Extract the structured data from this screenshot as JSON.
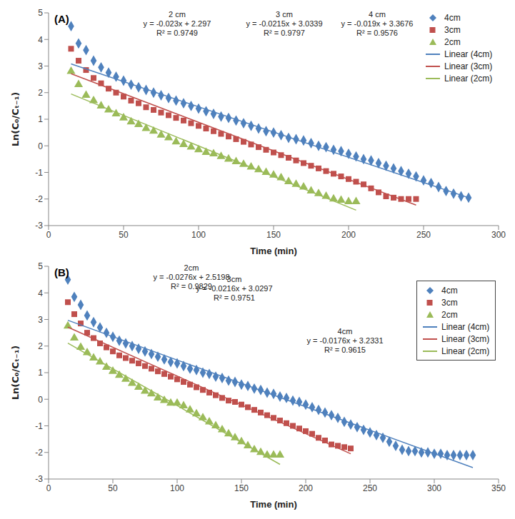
{
  "chart_data": [
    {
      "type": "scatter",
      "title": "(A)",
      "x_label": "Time (min)",
      "y_label": "Ln(C₀/Cₜ₋₁)",
      "xlim": [
        0,
        300
      ],
      "xticks": [
        0,
        50,
        100,
        150,
        200,
        250,
        300
      ],
      "ylim": [
        -3,
        5
      ],
      "yticks": [
        -3,
        -2,
        -1,
        0,
        1,
        2,
        3,
        4,
        5
      ],
      "grid": false,
      "legend": "upper right",
      "series": [
        {
          "name": "4cm",
          "color": "#4f81bd",
          "marker": "diamond",
          "x": [
            15,
            20,
            25,
            30,
            35,
            40,
            45,
            50,
            55,
            60,
            65,
            70,
            75,
            80,
            85,
            90,
            95,
            100,
            105,
            110,
            115,
            120,
            125,
            130,
            135,
            140,
            145,
            150,
            155,
            160,
            165,
            170,
            175,
            180,
            185,
            190,
            195,
            200,
            205,
            210,
            215,
            220,
            225,
            230,
            235,
            240,
            245,
            250,
            255,
            260,
            265,
            270,
            275,
            280
          ],
          "values": [
            4.5,
            3.85,
            3.6,
            3.2,
            2.95,
            2.75,
            2.6,
            2.45,
            2.3,
            2.2,
            2.1,
            2.0,
            1.9,
            1.8,
            1.7,
            1.6,
            1.5,
            1.4,
            1.3,
            1.2,
            1.1,
            1.05,
            0.95,
            0.85,
            0.75,
            0.65,
            0.55,
            0.5,
            0.4,
            0.3,
            0.25,
            0.2,
            0.1,
            0,
            -0.05,
            -0.15,
            -0.2,
            -0.3,
            -0.4,
            -0.5,
            -0.55,
            -0.65,
            -0.75,
            -0.85,
            -0.95,
            -1.05,
            -1.15,
            -1.3,
            -1.4,
            -1.55,
            -1.7,
            -1.8,
            -1.9,
            -1.95
          ]
        },
        {
          "name": "3cm",
          "color": "#c0504d",
          "marker": "square",
          "x": [
            15,
            20,
            25,
            30,
            35,
            40,
            45,
            50,
            55,
            60,
            65,
            70,
            75,
            80,
            85,
            90,
            95,
            100,
            105,
            110,
            115,
            120,
            125,
            130,
            135,
            140,
            145,
            150,
            155,
            160,
            165,
            170,
            175,
            180,
            185,
            190,
            195,
            200,
            205,
            210,
            215,
            220,
            225,
            230,
            235,
            240,
            245
          ],
          "values": [
            3.65,
            3.2,
            2.85,
            2.55,
            2.35,
            2.15,
            2.0,
            1.85,
            1.7,
            1.6,
            1.45,
            1.35,
            1.25,
            1.15,
            1.05,
            0.95,
            0.85,
            0.75,
            0.65,
            0.55,
            0.45,
            0.35,
            0.25,
            0.15,
            0.05,
            -0.05,
            -0.15,
            -0.25,
            -0.35,
            -0.45,
            -0.55,
            -0.65,
            -0.75,
            -0.85,
            -0.95,
            -1.05,
            -1.15,
            -1.25,
            -1.35,
            -1.45,
            -1.6,
            -1.75,
            -1.9,
            -1.95,
            -2.0,
            -2.0,
            -2.0
          ]
        },
        {
          "name": "2cm",
          "color": "#9bbb59",
          "marker": "triangle",
          "x": [
            15,
            20,
            25,
            30,
            35,
            40,
            45,
            50,
            55,
            60,
            65,
            70,
            75,
            80,
            85,
            90,
            95,
            100,
            105,
            110,
            115,
            120,
            125,
            130,
            135,
            140,
            145,
            150,
            155,
            160,
            165,
            170,
            175,
            180,
            185,
            190,
            195,
            200,
            205
          ],
          "values": [
            2.8,
            2.3,
            1.9,
            1.7,
            1.5,
            1.35,
            1.2,
            1.05,
            0.9,
            0.8,
            0.65,
            0.55,
            0.4,
            0.3,
            0.15,
            0.05,
            -0.05,
            -0.15,
            -0.25,
            -0.3,
            -0.4,
            -0.5,
            -0.6,
            -0.7,
            -0.8,
            -0.9,
            -1.0,
            -1.1,
            -1.2,
            -1.35,
            -1.45,
            -1.55,
            -1.7,
            -1.8,
            -1.9,
            -2.0,
            -2.05,
            -2.1,
            -2.1
          ]
        },
        {
          "name": "Linear (4cm)",
          "type": "line",
          "color": "#4f81bd",
          "x": [
            15,
            280
          ],
          "values": [
            3.08,
            -1.95
          ]
        },
        {
          "name": "Linear (3cm)",
          "type": "line",
          "color": "#c0504d",
          "x": [
            15,
            245
          ],
          "values": [
            2.71,
            -2.23
          ]
        },
        {
          "name": "Linear (2cm)",
          "type": "line",
          "color": "#9bbb59",
          "x": [
            15,
            205
          ],
          "values": [
            1.95,
            -2.42
          ]
        }
      ],
      "annotations": [
        {
          "text": [
            "2 cm",
            "y = -0.023x + 2.297",
            "R² = 0.9749"
          ]
        },
        {
          "text": [
            "3 cm",
            "y = -0.0215x + 3.0339",
            "R² = 0.9797"
          ]
        },
        {
          "text": [
            "4 cm",
            "y = -0.019x + 3.3676",
            "R² = 0.9576"
          ]
        }
      ]
    },
    {
      "type": "scatter",
      "title": "(B)",
      "x_label": "Time (min)",
      "y_label": "Ln(C₀/Cₜ₋₁)",
      "xlim": [
        0,
        350
      ],
      "xticks": [
        0,
        50,
        100,
        150,
        200,
        250,
        300,
        350
      ],
      "ylim": [
        -3,
        5
      ],
      "yticks": [
        -3,
        -2,
        -1,
        0,
        1,
        2,
        3,
        4,
        5
      ],
      "grid": false,
      "legend": "upper right",
      "series": [
        {
          "name": "4cm",
          "color": "#4f81bd",
          "marker": "diamond",
          "x": [
            15,
            20,
            25,
            30,
            35,
            40,
            45,
            50,
            55,
            60,
            65,
            70,
            75,
            80,
            85,
            90,
            95,
            100,
            105,
            110,
            115,
            120,
            125,
            130,
            135,
            140,
            145,
            150,
            155,
            160,
            165,
            170,
            175,
            180,
            185,
            190,
            195,
            200,
            205,
            210,
            215,
            220,
            225,
            230,
            235,
            240,
            245,
            250,
            255,
            260,
            265,
            270,
            275,
            280,
            285,
            290,
            295,
            300,
            305,
            310,
            315,
            320,
            325,
            330
          ],
          "values": [
            4.5,
            3.85,
            3.55,
            3.15,
            2.9,
            2.7,
            2.5,
            2.35,
            2.2,
            2.1,
            2.0,
            1.9,
            1.8,
            1.7,
            1.6,
            1.5,
            1.4,
            1.35,
            1.25,
            1.15,
            1.1,
            1.0,
            0.95,
            0.85,
            0.8,
            0.7,
            0.65,
            0.55,
            0.5,
            0.4,
            0.35,
            0.25,
            0.2,
            0.1,
            0.05,
            -0.05,
            -0.1,
            -0.2,
            -0.3,
            -0.4,
            -0.5,
            -0.6,
            -0.7,
            -0.85,
            -0.95,
            -1.05,
            -1.15,
            -1.25,
            -1.35,
            -1.45,
            -1.6,
            -1.75,
            -1.9,
            -1.95,
            -1.95,
            -2.0,
            -2.0,
            -2.05,
            -2.05,
            -2.1,
            -2.1,
            -2.1,
            -2.1,
            -2.1
          ]
        },
        {
          "name": "3cm",
          "color": "#c0504d",
          "marker": "square",
          "x": [
            15,
            20,
            25,
            30,
            35,
            40,
            45,
            50,
            55,
            60,
            65,
            70,
            75,
            80,
            85,
            90,
            95,
            100,
            105,
            110,
            115,
            120,
            125,
            130,
            135,
            140,
            145,
            150,
            155,
            160,
            165,
            170,
            175,
            180,
            185,
            190,
            195,
            200,
            205,
            210,
            215,
            220,
            225,
            230,
            235
          ],
          "values": [
            3.65,
            3.2,
            2.85,
            2.5,
            2.3,
            2.1,
            1.95,
            1.8,
            1.65,
            1.55,
            1.45,
            1.35,
            1.25,
            1.15,
            1.05,
            0.95,
            0.85,
            0.75,
            0.65,
            0.55,
            0.45,
            0.35,
            0.25,
            0.15,
            0.05,
            -0.05,
            -0.1,
            -0.2,
            -0.3,
            -0.4,
            -0.5,
            -0.6,
            -0.7,
            -0.8,
            -0.9,
            -1.0,
            -1.1,
            -1.2,
            -1.3,
            -1.45,
            -1.55,
            -1.7,
            -1.75,
            -1.8,
            -1.85
          ]
        },
        {
          "name": "2cm",
          "color": "#9bbb59",
          "marker": "triangle",
          "x": [
            15,
            20,
            25,
            30,
            35,
            40,
            45,
            50,
            55,
            60,
            65,
            70,
            75,
            80,
            85,
            90,
            95,
            100,
            105,
            110,
            115,
            120,
            125,
            130,
            135,
            140,
            145,
            150,
            155,
            160,
            165,
            170,
            175,
            180
          ],
          "values": [
            2.75,
            2.3,
            1.95,
            1.75,
            1.55,
            1.4,
            1.2,
            1.05,
            0.9,
            0.75,
            0.6,
            0.45,
            0.3,
            0.2,
            0.05,
            -0.05,
            -0.15,
            -0.15,
            -0.25,
            -0.4,
            -0.55,
            -0.7,
            -0.85,
            -1.0,
            -1.15,
            -1.3,
            -1.45,
            -1.6,
            -1.75,
            -1.9,
            -2.0,
            -2.1,
            -2.1,
            -2.1
          ]
        },
        {
          "name": "Linear (4cm)",
          "type": "line",
          "color": "#4f81bd",
          "x": [
            15,
            330
          ],
          "values": [
            2.97,
            -2.57
          ]
        },
        {
          "name": "Linear (3cm)",
          "type": "line",
          "color": "#c0504d",
          "x": [
            15,
            235
          ],
          "values": [
            2.71,
            -2.05
          ]
        },
        {
          "name": "Linear (2cm)",
          "type": "line",
          "color": "#9bbb59",
          "x": [
            15,
            180
          ],
          "values": [
            2.11,
            -2.45
          ]
        }
      ],
      "annotations": [
        {
          "text": [
            "2cm",
            "y = -0.0276x + 2.5198",
            "R² = 0.9829"
          ]
        },
        {
          "text": [
            "3cm",
            "y = -0.0216x + 3.0297",
            "R² = 0.9751"
          ]
        },
        {
          "text": [
            "4cm",
            "y = -0.0176x + 3.2331",
            "R² = 0.9615"
          ]
        }
      ]
    }
  ]
}
